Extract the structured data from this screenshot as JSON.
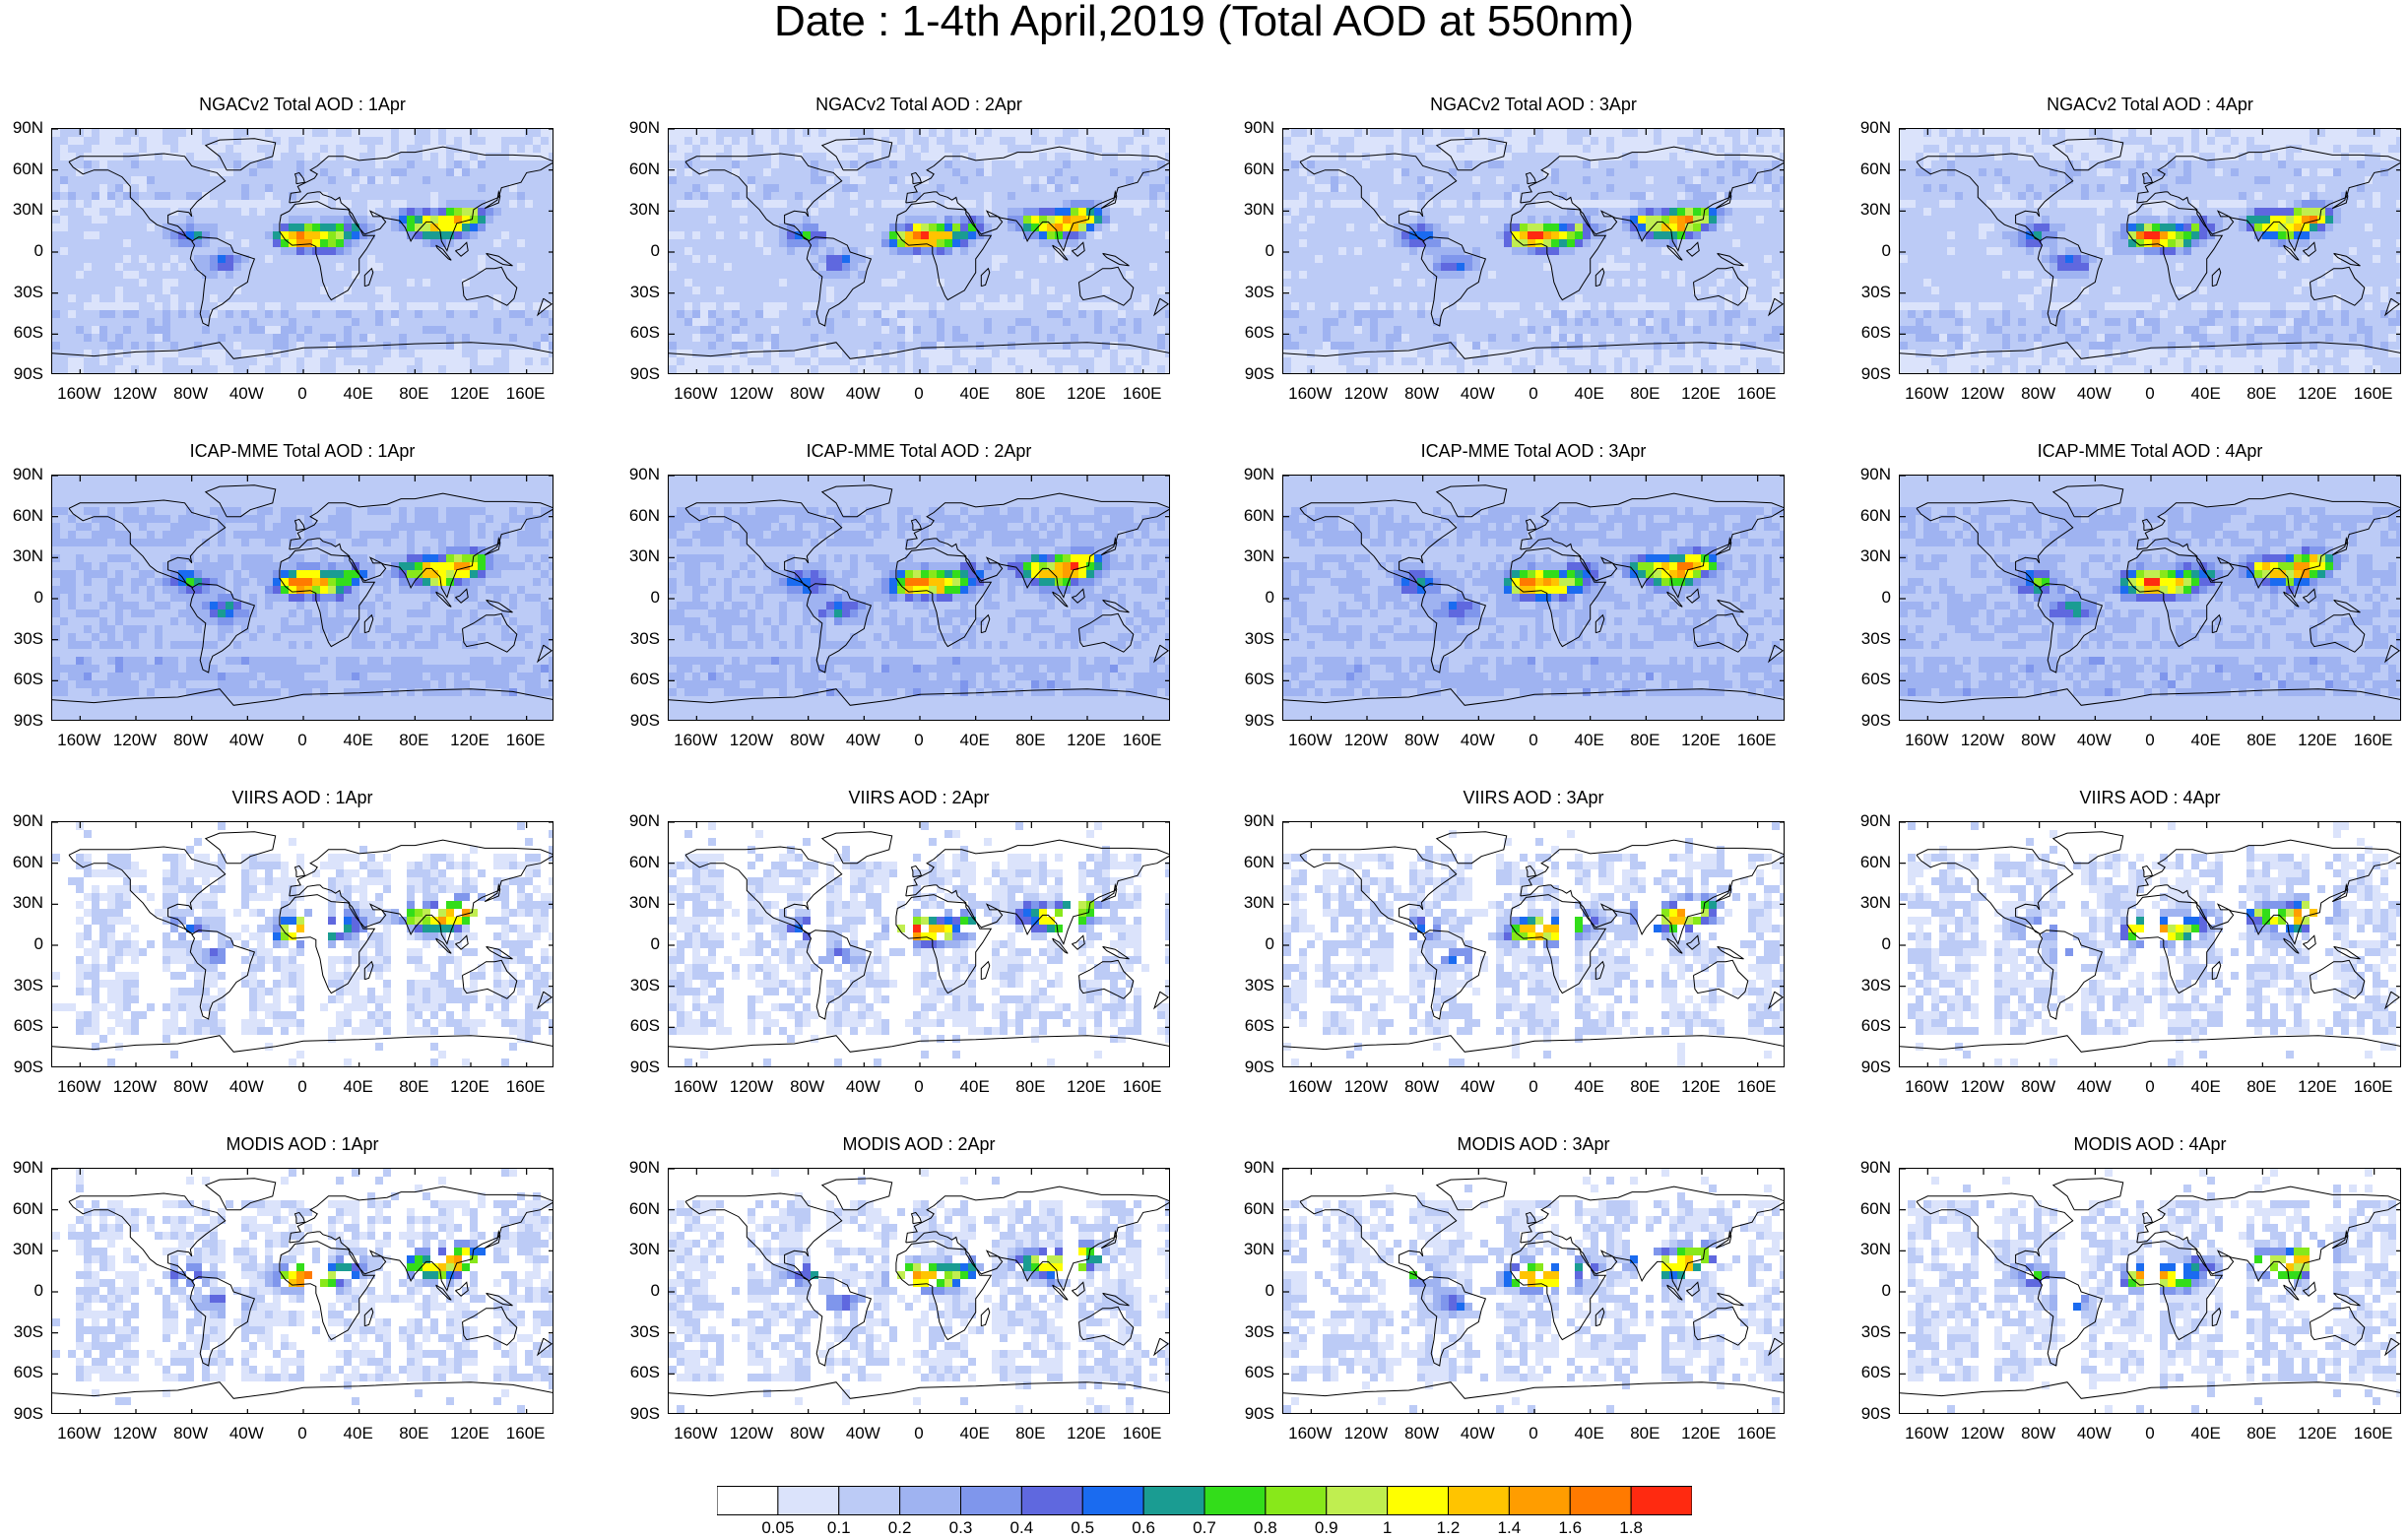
{
  "title": "Date : 1-4th April,2019 (Total AOD at 550nm)",
  "panels": [
    [
      "NGACv2 Total AOD : 1Apr",
      "NGACv2 Total AOD : 2Apr",
      "NGACv2 Total AOD : 3Apr",
      "NGACv2 Total AOD : 4Apr"
    ],
    [
      "ICAP-MME Total AOD : 1Apr",
      "ICAP-MME Total AOD : 2Apr",
      "ICAP-MME Total AOD : 3Apr",
      "ICAP-MME Total AOD : 4Apr"
    ],
    [
      "VIIRS AOD : 1Apr",
      "VIIRS AOD : 2Apr",
      "VIIRS AOD : 3Apr",
      "VIIRS AOD : 4Apr"
    ],
    [
      "MODIS AOD : 1Apr",
      "MODIS AOD : 2Apr",
      "MODIS AOD : 3Apr",
      "MODIS AOD : 4Apr"
    ]
  ],
  "lat_ticks": [
    "90N",
    "60N",
    "30N",
    "0",
    "30S",
    "60S",
    "90S"
  ],
  "lon_ticks": [
    "160W",
    "120W",
    "80W",
    "40W",
    "0",
    "40E",
    "80E",
    "120E",
    "160E"
  ],
  "lon_tick_values": [
    -160,
    -120,
    -80,
    -40,
    0,
    40,
    80,
    120,
    160
  ],
  "colorbar": {
    "levels": [
      "0.05",
      "0.1",
      "0.2",
      "0.3",
      "0.4",
      "0.5",
      "0.6",
      "0.7",
      "0.8",
      "0.9",
      "1",
      "1.2",
      "1.4",
      "1.6",
      "1.8"
    ],
    "colors": [
      "#ffffff",
      "#dbe3fb",
      "#bccbf6",
      "#9fb3f1",
      "#7f96ec",
      "#5f68df",
      "#1a6bf0",
      "#1a9c92",
      "#33dd1a",
      "#88e81a",
      "#c0ee50",
      "#ffff00",
      "#ffc400",
      "#ff9d00",
      "#ff7a00",
      "#ff2a10"
    ]
  }
}
